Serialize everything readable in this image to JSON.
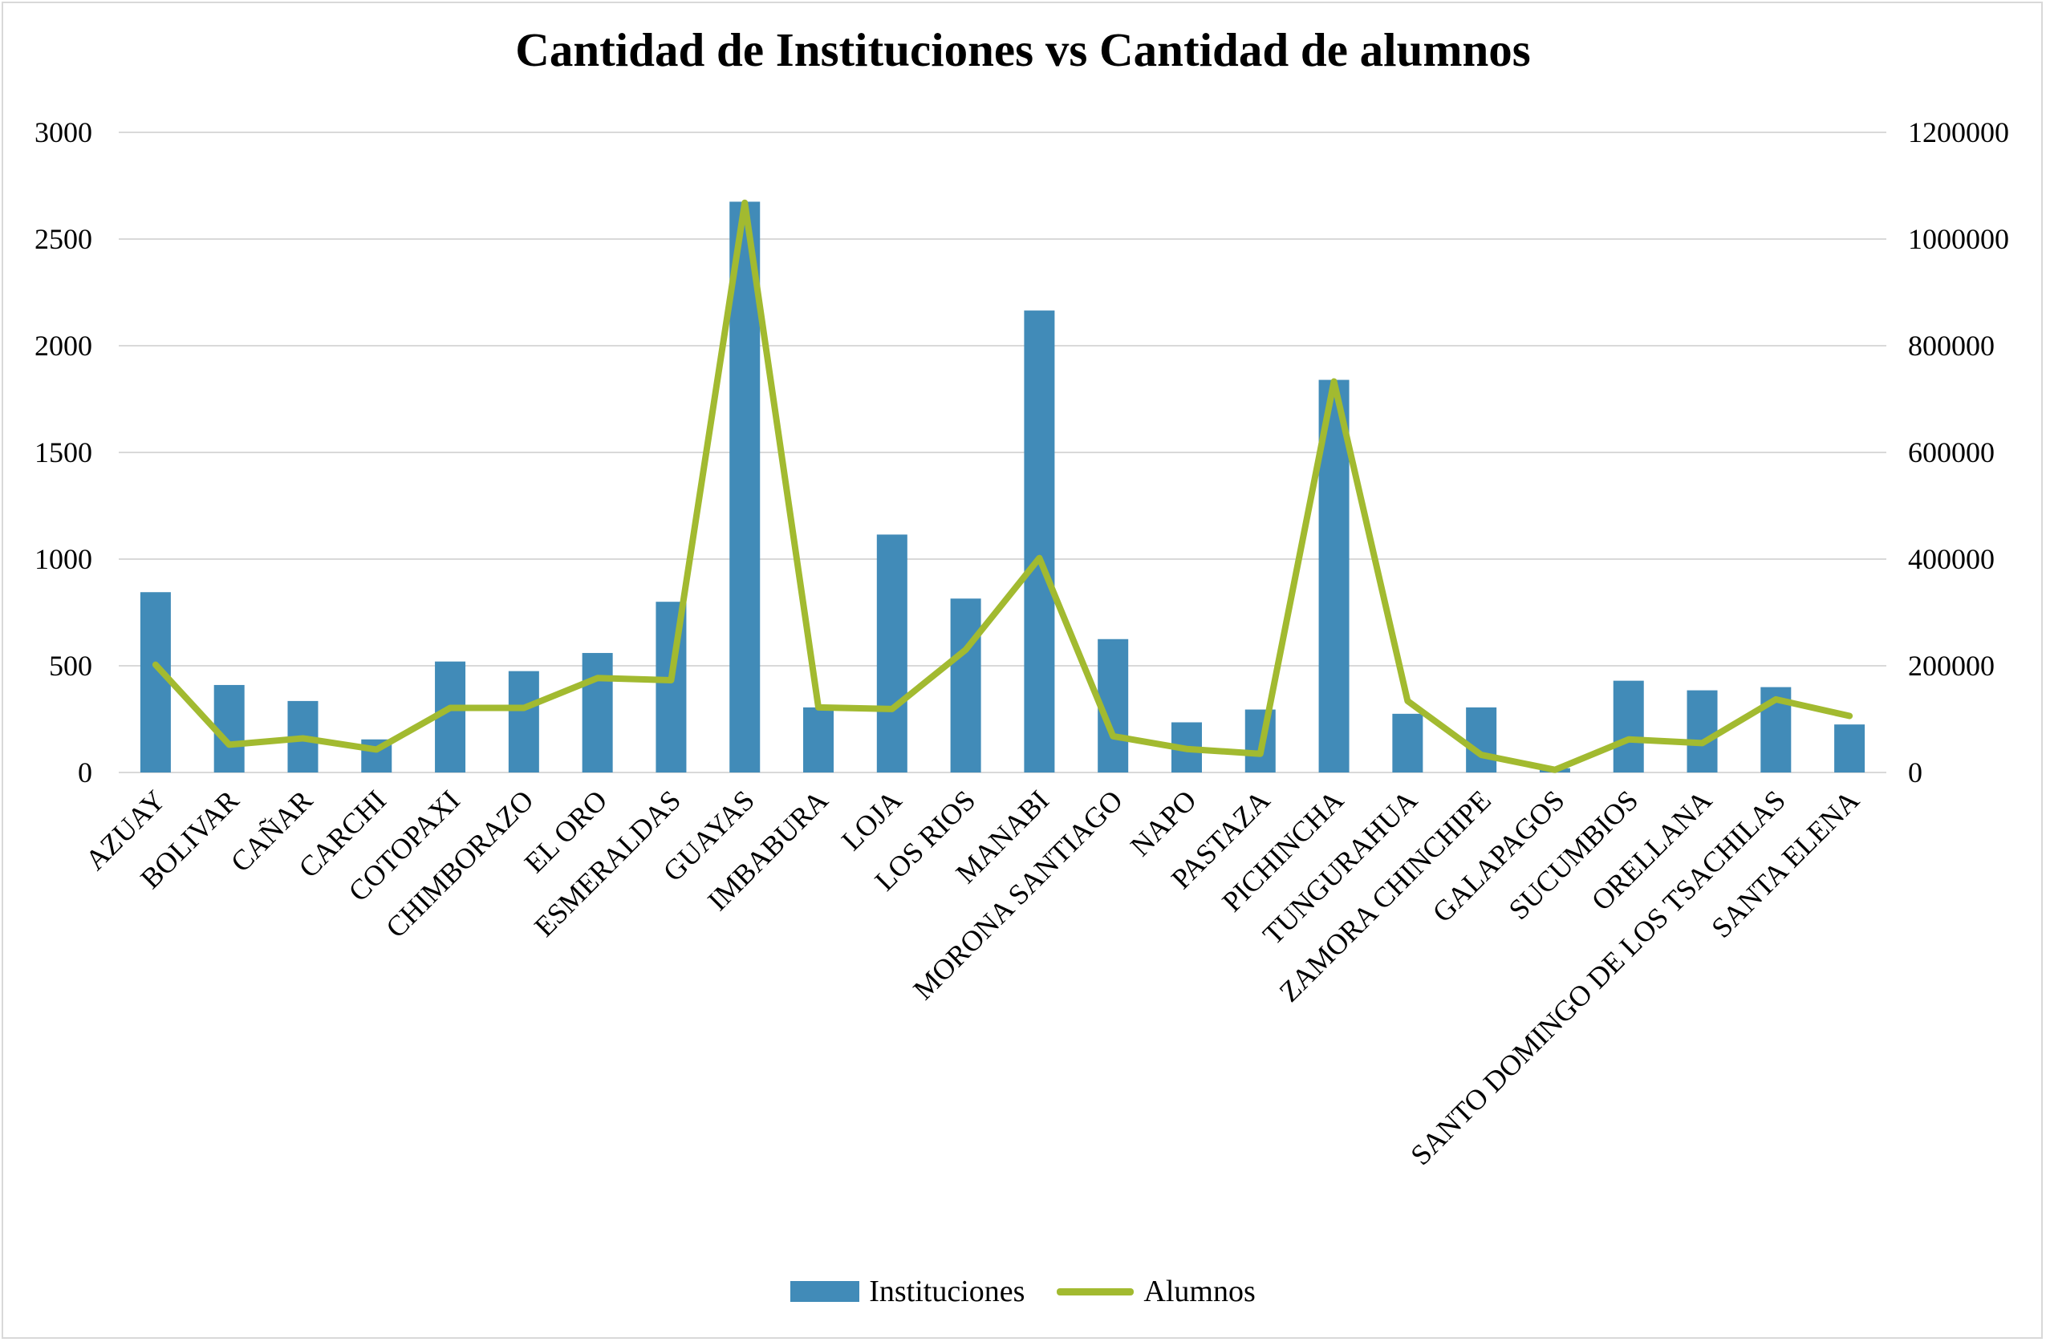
{
  "chart_data": {
    "type": "bar",
    "title": "Cantidad de Instituciones vs Cantidad de alumnos",
    "categories": [
      "AZUAY",
      "BOLIVAR",
      "CAÑAR",
      "CARCHI",
      "COTOPAXI",
      "CHIMBORAZO",
      "EL ORO",
      "ESMERALDAS",
      "GUAYAS",
      "IMBABURA",
      "LOJA",
      "LOS RIOS",
      "MANABI",
      "MORONA SANTIAGO",
      "NAPO",
      "PASTAZA",
      "PICHINCHA",
      "TUNGURAHUA",
      "ZAMORA CHINCHIPE",
      "GALAPAGOS",
      "SUCUMBIOS",
      "ORELLANA",
      "SANTO DOMINGO DE LOS TSACHILAS",
      "SANTA ELENA"
    ],
    "series": [
      {
        "name": "Instituciones",
        "type": "bar",
        "axis": "left",
        "color": "#418bb8",
        "values": [
          845,
          410,
          335,
          155,
          520,
          475,
          560,
          800,
          2675,
          305,
          1115,
          815,
          2165,
          625,
          235,
          295,
          1840,
          275,
          305,
          20,
          430,
          385,
          400,
          225
        ]
      },
      {
        "name": "Alumnos",
        "type": "line",
        "axis": "right",
        "color": "#a2ba30",
        "values": [
          202000,
          52000,
          64000,
          43000,
          121000,
          121000,
          177000,
          173000,
          1068000,
          122000,
          119000,
          230000,
          402000,
          68000,
          44000,
          35000,
          733000,
          134000,
          33000,
          5000,
          62000,
          55000,
          137000,
          106000
        ]
      }
    ],
    "y_left": {
      "min": 0,
      "max": 3000,
      "ticks": [
        "0",
        "500",
        "1000",
        "1500",
        "2000",
        "2500",
        "3000"
      ]
    },
    "y_right": {
      "min": 0,
      "max": 1200000,
      "ticks": [
        "0",
        "200000",
        "400000",
        "600000",
        "800000",
        "1000000",
        "1200000"
      ]
    },
    "grid": true,
    "legend": "bottom"
  }
}
